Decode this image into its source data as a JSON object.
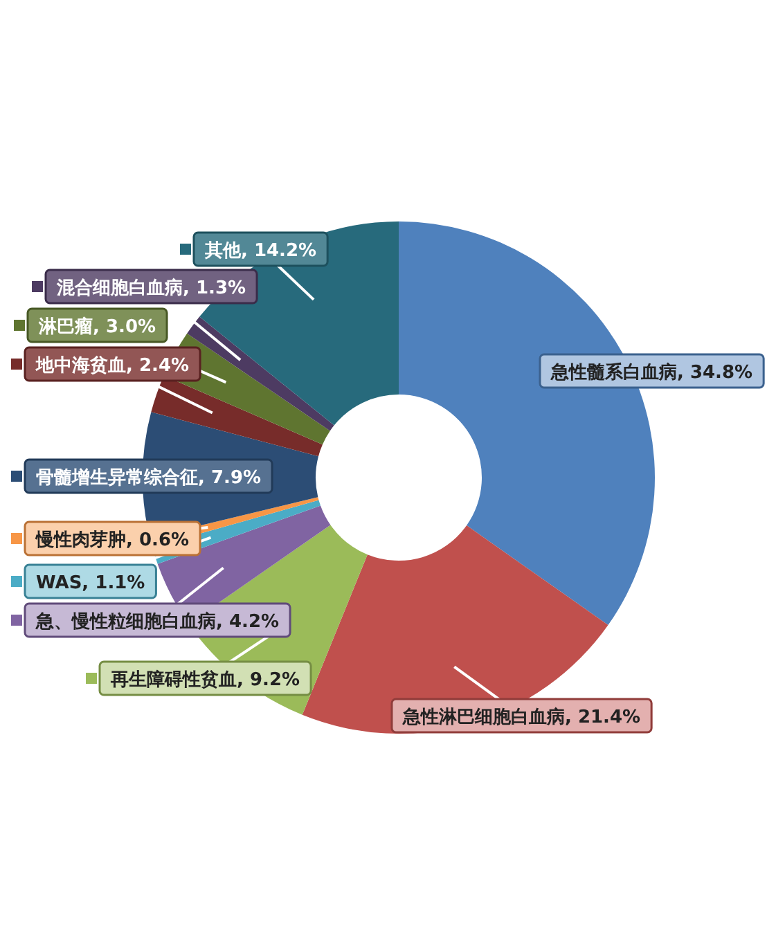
{
  "chart_data": {
    "type": "donut",
    "categories": [
      "急性髓系白血病",
      "急性淋巴细胞白血病",
      "再生障碍性贫血",
      "急、慢性粒细胞白血病",
      "WAS",
      "慢性肉芽肿",
      "骨髓增生异常综合征",
      "地中海贫血",
      "淋巴瘤",
      "混合细胞白血病",
      "其他"
    ],
    "values": [
      34.8,
      21.4,
      9.2,
      4.2,
      1.1,
      0.6,
      7.9,
      2.4,
      3.0,
      1.3,
      14.2
    ],
    "value_labels": [
      "34.8%",
      "21.4%",
      "9.2%",
      "4.2%",
      "1.1%",
      "0.6%",
      "7.9%",
      "2.4%",
      "3.0%",
      "1.3%",
      "14.2%"
    ],
    "colors": [
      "#4f81bd",
      "#c0504d",
      "#9bbb59",
      "#8064a2",
      "#4bacc6",
      "#f79646",
      "#2c4d75",
      "#772c2a",
      "#5f7530",
      "#4d3b62",
      "#276a7c"
    ],
    "legend": "left"
  }
}
